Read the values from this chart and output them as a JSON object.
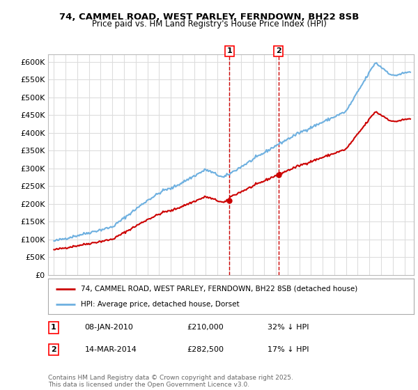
{
  "title": "74, CAMMEL ROAD, WEST PARLEY, FERNDOWN, BH22 8SB",
  "subtitle": "Price paid vs. HM Land Registry's House Price Index (HPI)",
  "ylim": [
    0,
    620000
  ],
  "yticks": [
    0,
    50000,
    100000,
    150000,
    200000,
    250000,
    300000,
    350000,
    400000,
    450000,
    500000,
    550000,
    600000
  ],
  "ytick_labels": [
    "£0",
    "£50K",
    "£100K",
    "£150K",
    "£200K",
    "£250K",
    "£300K",
    "£350K",
    "£400K",
    "£450K",
    "£500K",
    "£550K",
    "£600K"
  ],
  "hpi_color": "#6eb0e0",
  "price_color": "#cc0000",
  "marker_color": "#cc0000",
  "vline_color": "#cc0000",
  "background_color": "#ffffff",
  "grid_color": "#dddddd",
  "sale1_date": 2010.03,
  "sale1_price": 210000,
  "sale2_date": 2014.21,
  "sale2_price": 282500,
  "legend_label_price": "74, CAMMEL ROAD, WEST PARLEY, FERNDOWN, BH22 8SB (detached house)",
  "legend_label_hpi": "HPI: Average price, detached house, Dorset",
  "note1_date": "08-JAN-2010",
  "note1_price": "£210,000",
  "note1_pct": "32% ↓ HPI",
  "note2_date": "14-MAR-2014",
  "note2_price": "£282,500",
  "note2_pct": "17% ↓ HPI",
  "footer": "Contains HM Land Registry data © Crown copyright and database right 2025.\nThis data is licensed under the Open Government Licence v3.0."
}
